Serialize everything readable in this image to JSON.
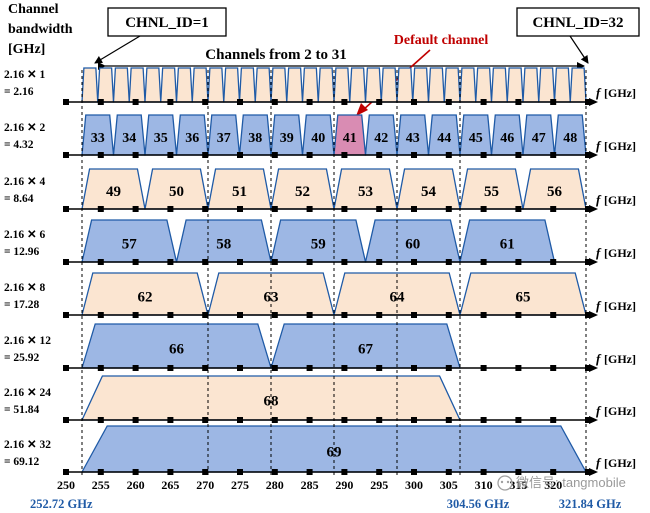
{
  "title_lines": [
    "Channel",
    "bandwidth",
    "[GHz]"
  ],
  "chnl_id_first": "CHNL_ID=1",
  "chnl_id_last": "CHNL_ID=32",
  "channels_range_label": "Channels from 2 to 31",
  "default_channel_label": "Default channel",
  "frequency_symbol": "f",
  "frequency_unit": "[GHz]",
  "rows": [
    {
      "label1": "2.16 ✕ 1",
      "label2": "= 2.16",
      "bandwidth": 2.16,
      "first_id": 1,
      "count": 32,
      "fill": "#fbe5d1"
    },
    {
      "label1": "2.16 ✕ 2",
      "label2": "= 4.32",
      "bandwidth": 4.32,
      "first_id": 33,
      "count": 16,
      "fill": "#9db7e4"
    },
    {
      "label1": "2.16 ✕ 4",
      "label2": "= 8.64",
      "bandwidth": 8.64,
      "first_id": 49,
      "count": 8,
      "fill": "#fbe5d1"
    },
    {
      "label1": "2.16 ✕ 6",
      "label2": "= 12.96",
      "bandwidth": 12.96,
      "first_id": 57,
      "count": 5,
      "fill": "#9db7e4"
    },
    {
      "label1": "2.16 ✕ 8",
      "label2": "= 17.28",
      "bandwidth": 17.28,
      "first_id": 62,
      "count": 4,
      "fill": "#fbe5d1"
    },
    {
      "label1": "2.16 ✕ 12",
      "label2": "= 25.92",
      "bandwidth": 25.92,
      "first_id": 66,
      "count": 2,
      "fill": "#9db7e4"
    },
    {
      "label1": "2.16 ✕ 24",
      "label2": "= 51.84",
      "bandwidth": 51.84,
      "first_id": 68,
      "count": 1,
      "fill": "#fbe5d1"
    },
    {
      "label1": "2.16 ✕ 32",
      "label2": "= 69.12",
      "bandwidth": 69.12,
      "first_id": 69,
      "count": 1,
      "fill": "#9db7e4"
    }
  ],
  "default_channel_id": 41,
  "default_channel_fill": "#d98cb3",
  "start_frequency_ghz": 252.72,
  "freq_ticks": [
    "250",
    "255",
    "260",
    "265",
    "270",
    "275",
    "280",
    "285",
    "290",
    "295",
    "300",
    "305",
    "310",
    "315",
    "320"
  ],
  "band_marks": [
    "252.72 GHz",
    "304.56 GHz",
    "321.84 GHz"
  ],
  "watermark": "微信号: tangmobile"
}
